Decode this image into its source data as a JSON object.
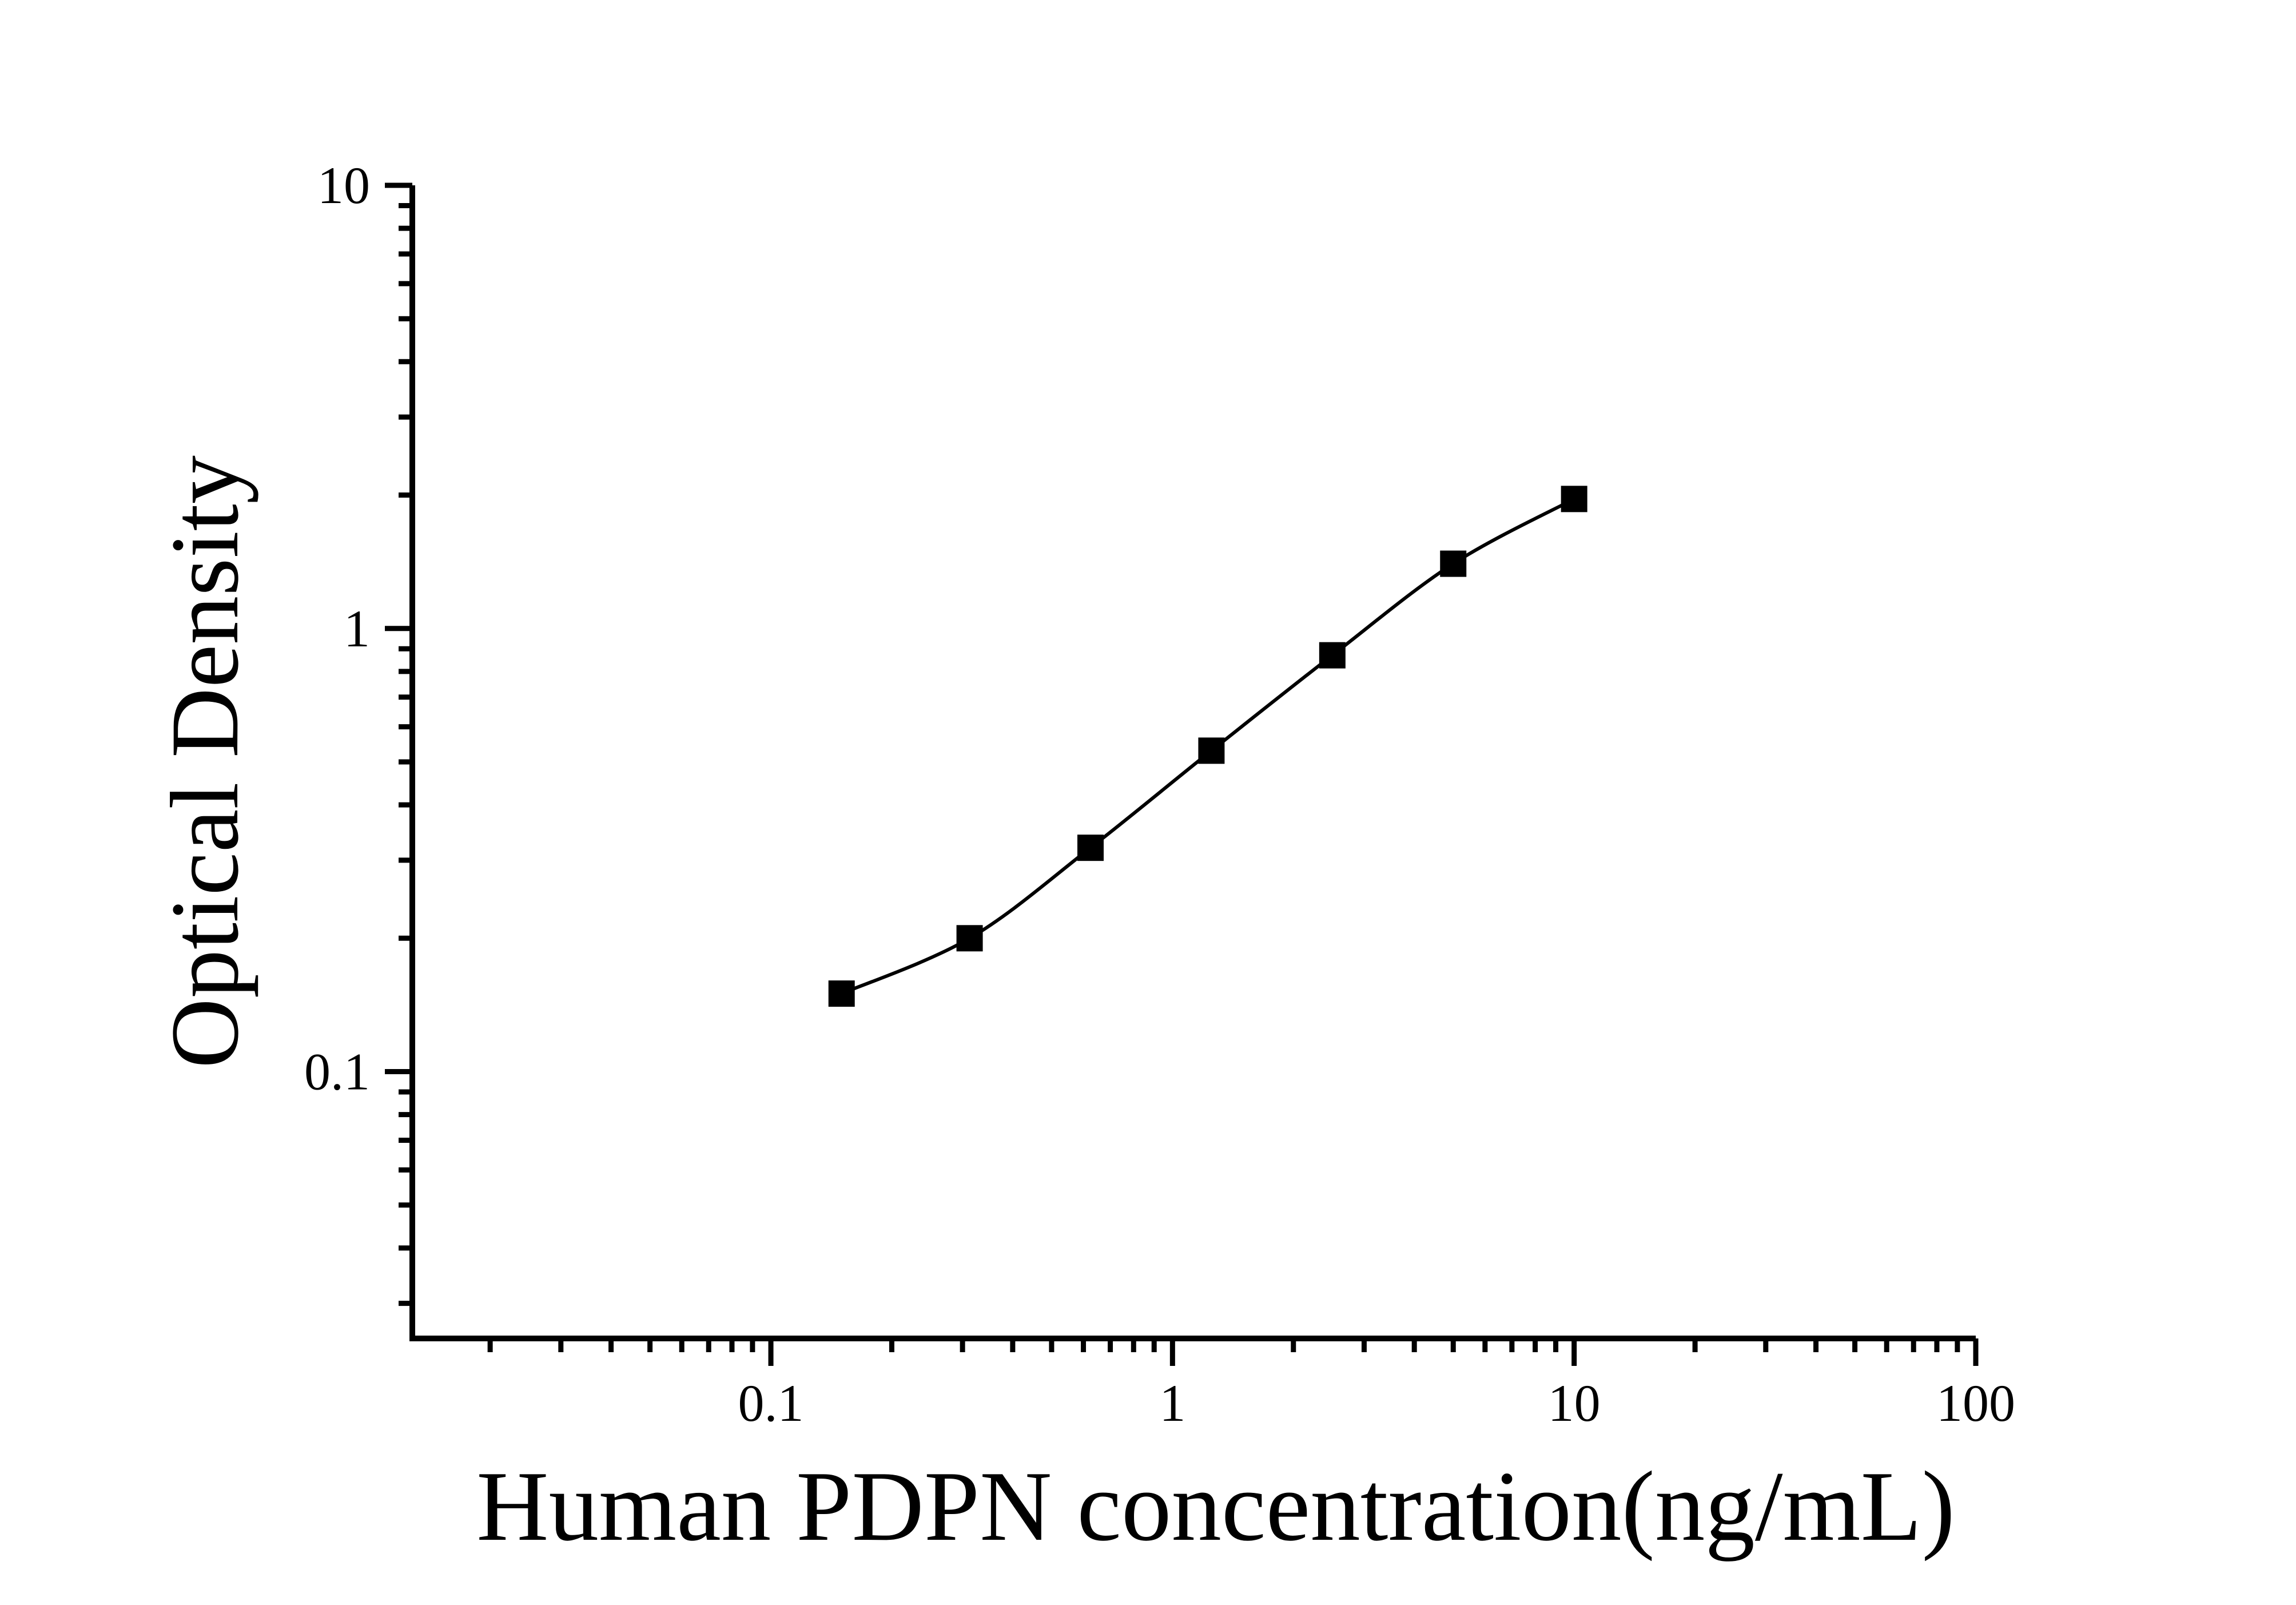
{
  "figure": {
    "background_color": "#ffffff",
    "foreground_color": "#000000"
  },
  "chart_data": {
    "type": "scatter",
    "title": "",
    "xlabel": "Human PDPN concentration(ng/mL)",
    "ylabel": "Optical Density",
    "x_scale": "log",
    "y_scale": "log",
    "xlim": [
      0.0128,
      100
    ],
    "ylim": [
      0.025,
      10
    ],
    "x_major_ticks": [
      0.1,
      1,
      10,
      100
    ],
    "x_major_tick_labels": [
      "0.1",
      "1",
      "10",
      "100"
    ],
    "y_major_ticks": [
      0.1,
      1,
      10
    ],
    "y_major_tick_labels": [
      "0.1",
      "1",
      "10"
    ],
    "grid": false,
    "legend": false,
    "marker_shape": "filled-square",
    "marker_color": "#000000",
    "line_color": "#000000",
    "x": [
      0.15,
      0.3125,
      0.625,
      1.25,
      2.5,
      5,
      10
    ],
    "y": [
      0.15,
      0.2,
      0.32,
      0.53,
      0.87,
      1.4,
      1.96
    ]
  }
}
